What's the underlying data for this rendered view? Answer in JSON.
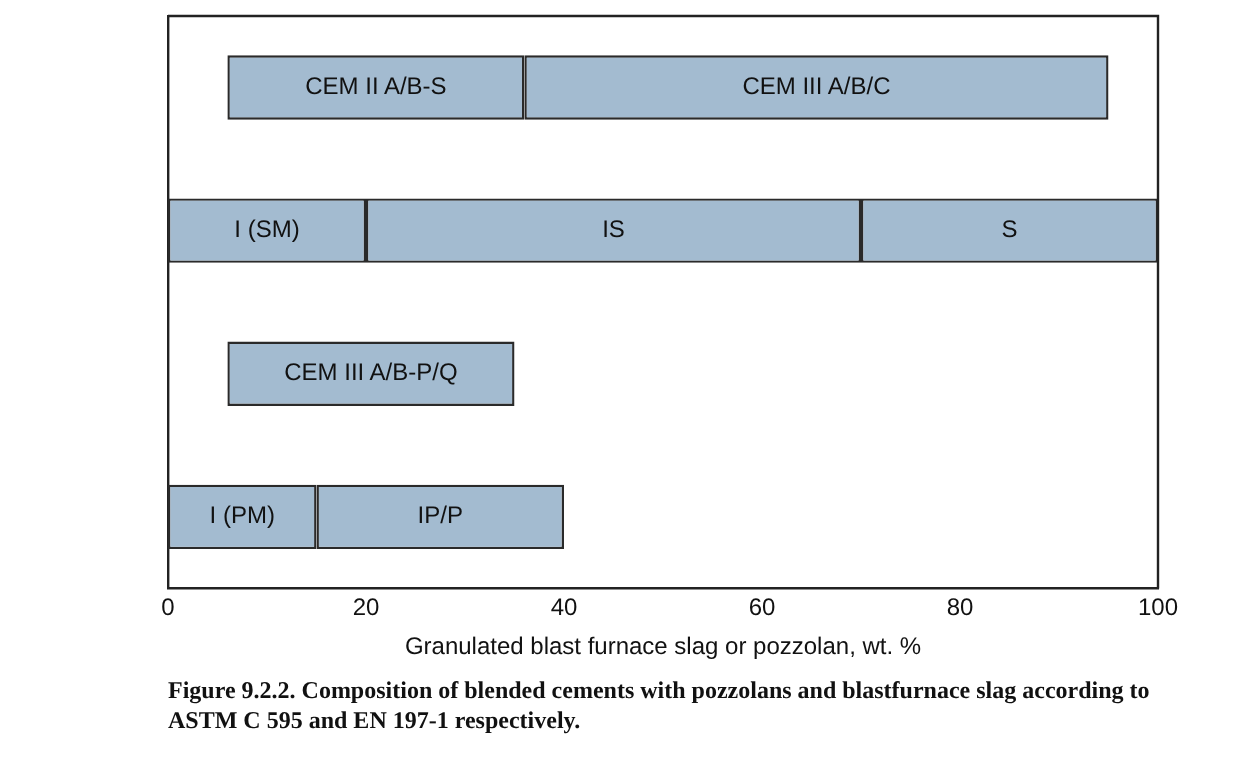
{
  "chart_data": {
    "type": "bar",
    "orientation": "horizontal",
    "xlabel": "Granulated blast furnace slag or pozzolan, wt. %",
    "categories": [
      null,
      null,
      null,
      null
    ],
    "series": [
      {
        "color": "#a3bbd0",
        "base": [
          6,
          0,
          6,
          0
        ],
        "values": [
          30,
          20,
          29,
          15
        ],
        "value_labels": [
          "CEM II A/B-S",
          "I (SM)",
          "CEM III A/B-P/Q",
          "I (PM)"
        ]
      },
      {
        "color": "#a3bbd0",
        "base": [
          36,
          20,
          null,
          15
        ],
        "values": [
          59,
          50,
          null,
          25
        ],
        "value_labels": [
          "CEM III A/B/C",
          "IS",
          null,
          "IP/P"
        ]
      },
      {
        "color": "#a3bbd0",
        "base": [
          null,
          70,
          null,
          null
        ],
        "values": [
          null,
          30,
          null,
          null
        ],
        "value_labels": [
          null,
          "S",
          null,
          null
        ]
      }
    ],
    "xlim": [
      0,
      100
    ],
    "xticks": [
      0,
      20,
      40,
      60,
      80,
      100
    ],
    "tick_labels": "x",
    "grid": false,
    "legend": false,
    "annotations": [
      "Figure 9.2.2. Composition of blended cements with pozzolans and blastfurnace slag according to ASTM C 595 and EN 197-1 respectively."
    ]
  }
}
